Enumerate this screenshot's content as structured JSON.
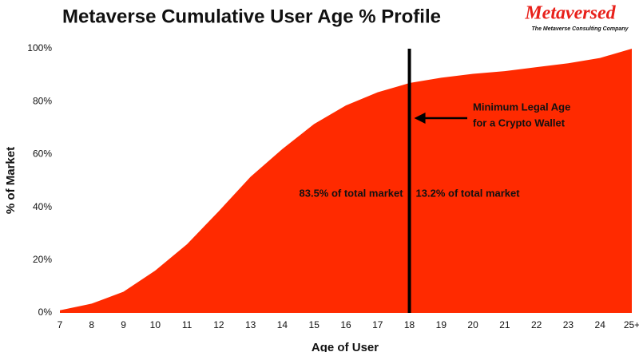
{
  "chart_data": {
    "type": "area",
    "title": "Metaverse Cumulative User Age % Profile",
    "logo": "Metaversed",
    "logo_tagline": "The Metaverse Consulting Company",
    "x_label": "Age of User",
    "y_label": "% of Market",
    "categories": [
      "7",
      "8",
      "9",
      "10",
      "11",
      "12",
      "13",
      "14",
      "15",
      "16",
      "17",
      "18",
      "19",
      "20",
      "21",
      "22",
      "23",
      "24",
      "25+"
    ],
    "values": [
      1,
      3.5,
      8,
      16,
      26,
      38.5,
      51.5,
      62,
      71.5,
      78.5,
      83.5,
      87,
      89,
      90.5,
      91.5,
      93,
      94.5,
      96.5,
      100
    ],
    "color": "#ff2a00",
    "ylim": [
      0,
      100
    ],
    "yticks": [
      {
        "value": 0,
        "label": "0%"
      },
      {
        "value": 20,
        "label": "20%"
      },
      {
        "value": 40,
        "label": "40%"
      },
      {
        "value": 60,
        "label": "60%"
      },
      {
        "value": 80,
        "label": "80%"
      },
      {
        "value": 100,
        "label": "100%"
      }
    ],
    "vline": "18",
    "vline_note": [
      "Minimum Legal Age",
      "for a Crypto Wallet"
    ],
    "left_note": "83.5% of total market",
    "right_note": "13.2% of total market"
  }
}
